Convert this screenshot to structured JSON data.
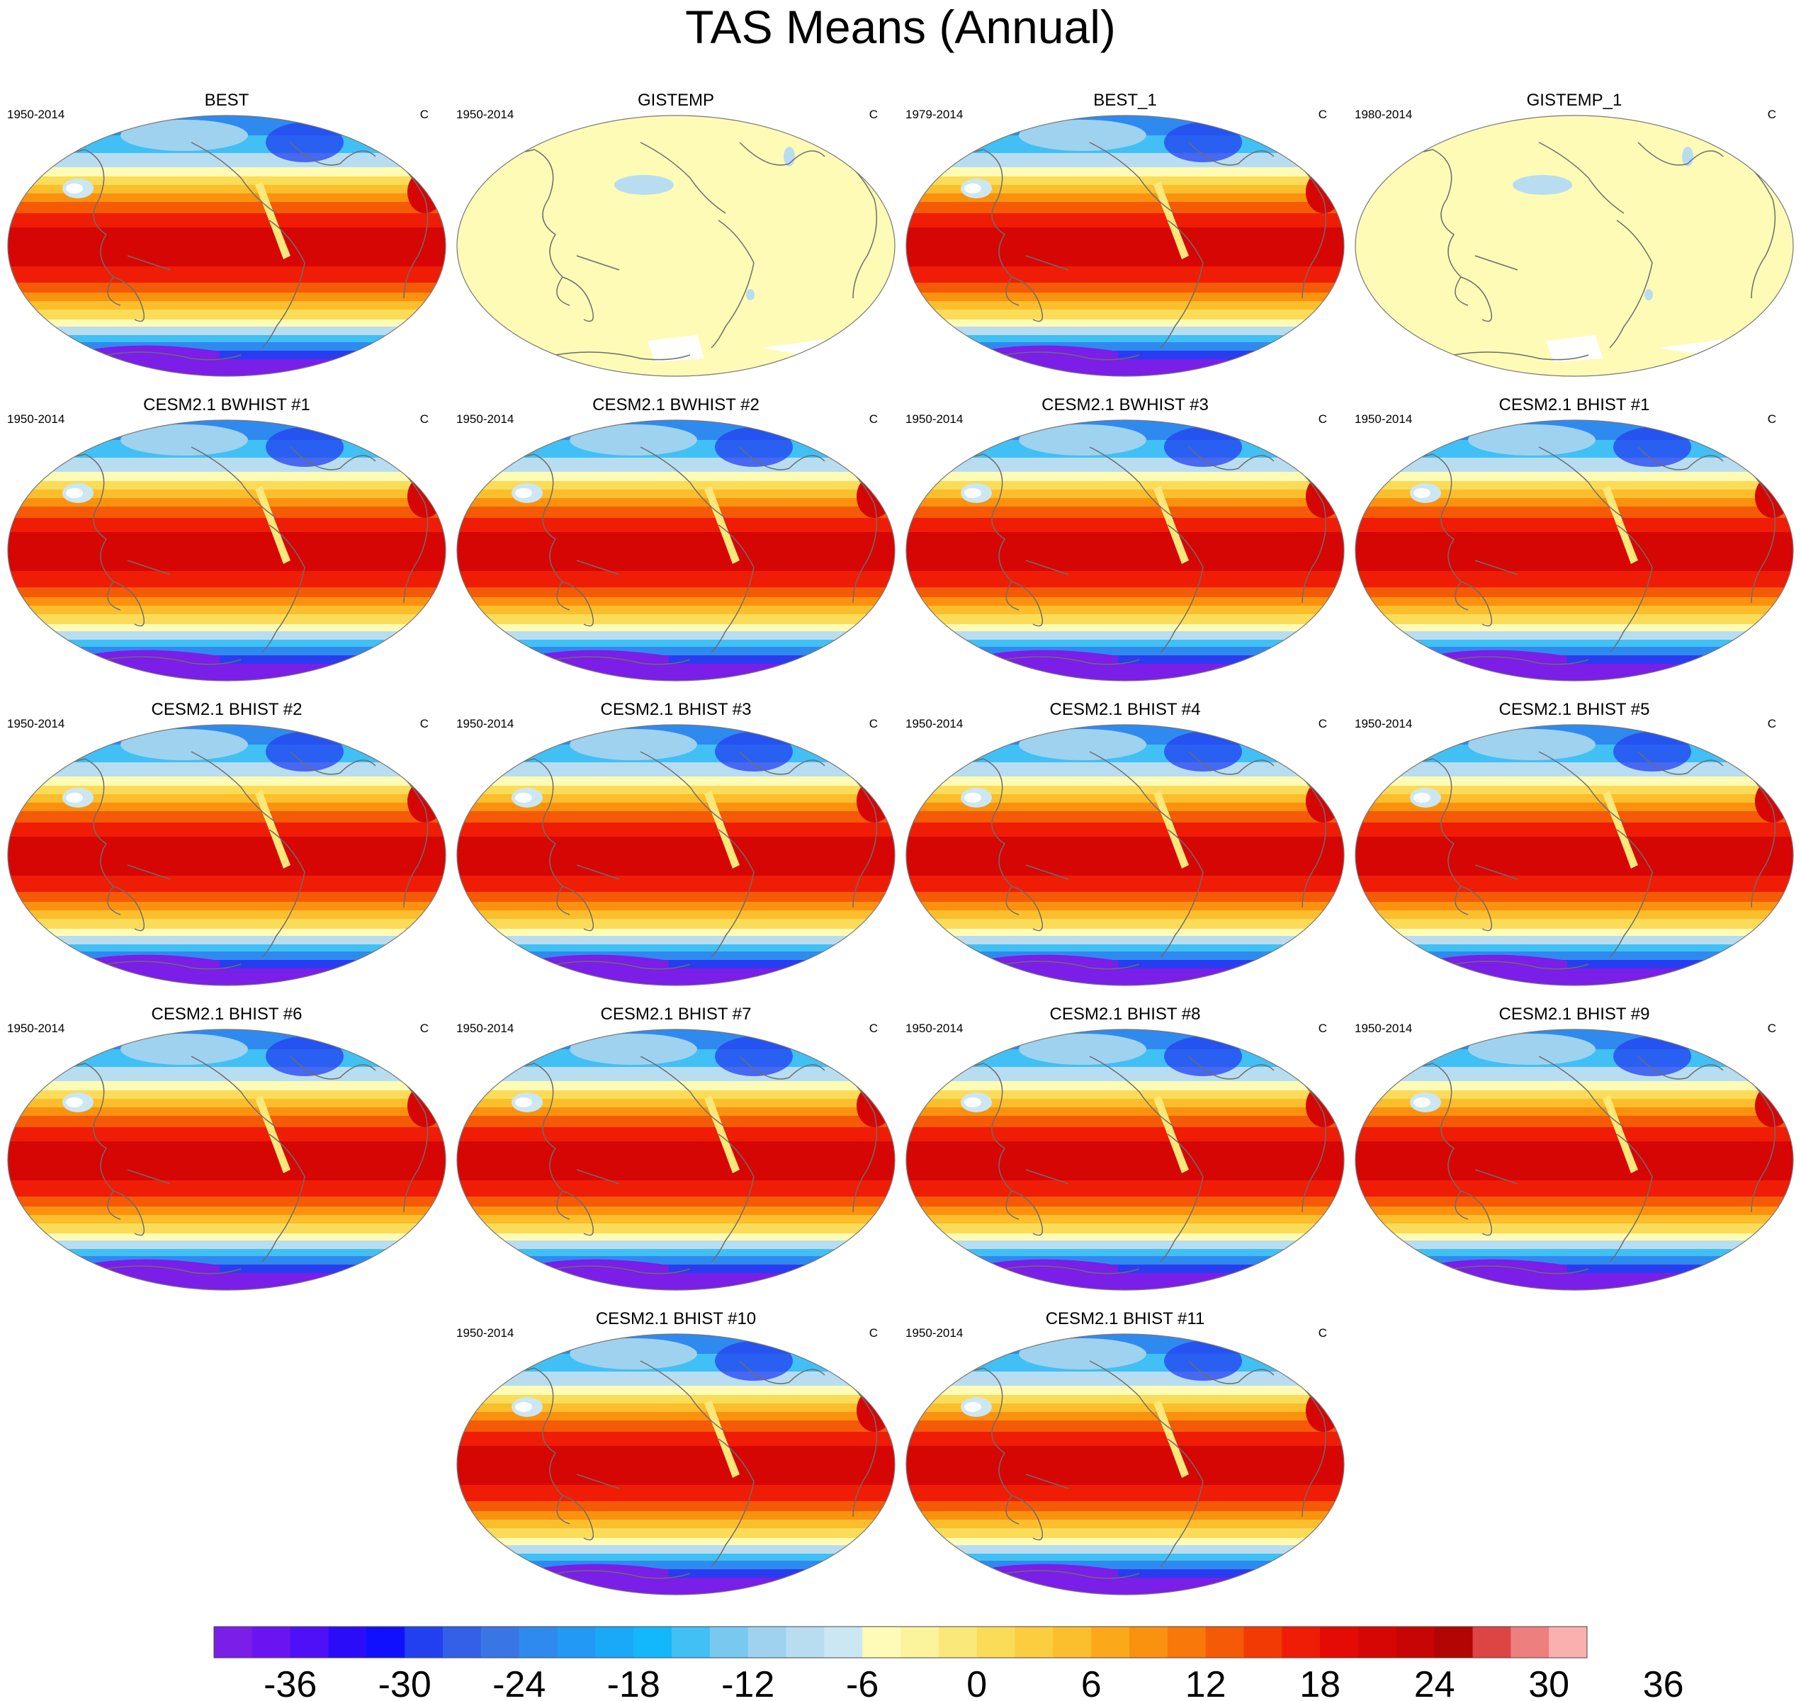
{
  "title": "TAS Means (Annual)",
  "panels": [
    {
      "title": "BEST",
      "period": "1950-2014",
      "units": "C",
      "style": "obs"
    },
    {
      "title": "GISTEMP",
      "period": "1950-2014",
      "units": "C",
      "style": "anom"
    },
    {
      "title": "BEST_1",
      "period": "1979-2014",
      "units": "C",
      "style": "obs"
    },
    {
      "title": "GISTEMP_1",
      "period": "1980-2014",
      "units": "C",
      "style": "anom"
    },
    {
      "title": "CESM2.1 BWHIST #1",
      "period": "1950-2014",
      "units": "C",
      "style": "model"
    },
    {
      "title": "CESM2.1 BWHIST #2",
      "period": "1950-2014",
      "units": "C",
      "style": "model"
    },
    {
      "title": "CESM2.1 BWHIST #3",
      "period": "1950-2014",
      "units": "C",
      "style": "model"
    },
    {
      "title": "CESM2.1 BHIST #1",
      "period": "1950-2014",
      "units": "C",
      "style": "model"
    },
    {
      "title": "CESM2.1 BHIST #2",
      "period": "1950-2014",
      "units": "C",
      "style": "model"
    },
    {
      "title": "CESM2.1 BHIST #3",
      "period": "1950-2014",
      "units": "C",
      "style": "model"
    },
    {
      "title": "CESM2.1 BHIST #4",
      "period": "1950-2014",
      "units": "C",
      "style": "model"
    },
    {
      "title": "CESM2.1 BHIST #5",
      "period": "1950-2014",
      "units": "C",
      "style": "model"
    },
    {
      "title": "CESM2.1 BHIST #6",
      "period": "1950-2014",
      "units": "C",
      "style": "model"
    },
    {
      "title": "CESM2.1 BHIST #7",
      "period": "1950-2014",
      "units": "C",
      "style": "model"
    },
    {
      "title": "CESM2.1 BHIST #8",
      "period": "1950-2014",
      "units": "C",
      "style": "model"
    },
    {
      "title": "CESM2.1 BHIST #9",
      "period": "1950-2014",
      "units": "C",
      "style": "model"
    },
    {
      "title": "CESM2.1 BHIST #10",
      "period": "1950-2014",
      "units": "C",
      "style": "model"
    },
    {
      "title": "CESM2.1 BHIST #11",
      "period": "1950-2014",
      "units": "C",
      "style": "model"
    }
  ],
  "colorbar": {
    "labels": [
      "-36",
      "-30",
      "-24",
      "-18",
      "-12",
      "-6",
      "0",
      "6",
      "12",
      "18",
      "24",
      "30",
      "36"
    ],
    "colors": [
      "#7a1ee8",
      "#6a14f2",
      "#4f10f7",
      "#2a0cf9",
      "#1010ff",
      "#2340f0",
      "#3460e8",
      "#3a75e6",
      "#2f8af0",
      "#2199f5",
      "#1aa8f8",
      "#12b8fb",
      "#40c0f5",
      "#78c8f0",
      "#9fd2ef",
      "#b8ddf1",
      "#cbe7f3",
      "#fdfbb6",
      "#fcf49c",
      "#fbe87a",
      "#fbdc59",
      "#fbcd3f",
      "#fbbe2c",
      "#fba81b",
      "#fa920f",
      "#f8780a",
      "#f55a07",
      "#f23a05",
      "#ef1d05",
      "#e40a05",
      "#d60605",
      "#c70505",
      "#b40505",
      "#dd4444",
      "#ee7f7f",
      "#fbb0b0"
    ]
  }
}
